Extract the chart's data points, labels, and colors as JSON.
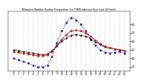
{
  "title": "Milwaukee Weather Outdoor Temperature (vs) THSW Index per Hour (Last 24 Hours)",
  "hours": [
    0,
    1,
    2,
    3,
    4,
    5,
    6,
    7,
    8,
    9,
    10,
    11,
    12,
    13,
    14,
    15,
    16,
    17,
    18,
    19,
    20,
    21,
    22,
    23
  ],
  "temp": [
    48,
    47,
    46,
    45,
    44,
    43,
    43,
    44,
    48,
    55,
    62,
    68,
    72,
    73,
    72,
    70,
    66,
    61,
    57,
    54,
    52,
    51,
    50,
    49
  ],
  "thsw": [
    40,
    38,
    36,
    34,
    32,
    30,
    30,
    32,
    42,
    58,
    72,
    82,
    88,
    85,
    80,
    72,
    62,
    55,
    50,
    47,
    46,
    47,
    48,
    46
  ],
  "outdoor": [
    50,
    49,
    48,
    47,
    46,
    45,
    44,
    45,
    49,
    54,
    60,
    64,
    67,
    68,
    67,
    66,
    63,
    59,
    56,
    53,
    52,
    51,
    50,
    49
  ],
  "ylim": [
    25,
    95
  ],
  "yticks": [
    30,
    40,
    50,
    60,
    70,
    80
  ],
  "background": "#ffffff",
  "grid_color": "#aaaaaa",
  "temp_color": "#cc0000",
  "thsw_color": "#0000cc",
  "outdoor_color": "#000000"
}
